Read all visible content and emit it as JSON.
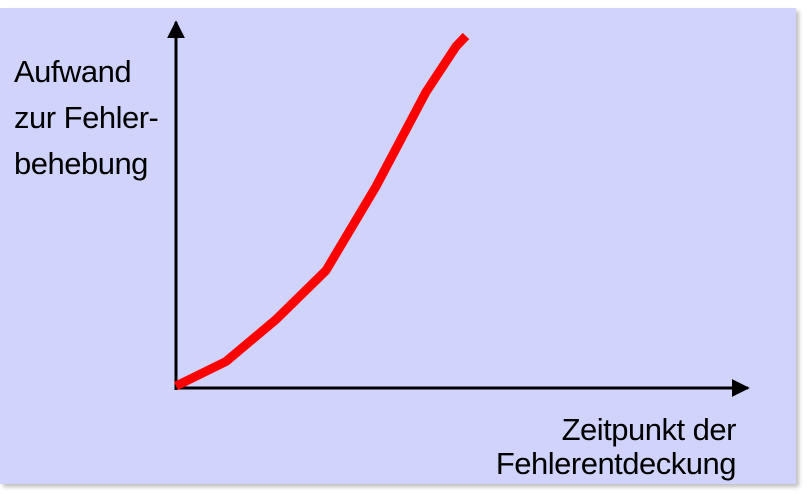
{
  "chart_data": {
    "type": "line",
    "title": "",
    "ylabel_lines": [
      "Aufwand",
      "zur Fehler-",
      "behebung"
    ],
    "xlabel_lines": [
      "Zeitpunkt der",
      "Fehlerentdeckung"
    ],
    "x": [
      0,
      1,
      2,
      3,
      4,
      5,
      5.6,
      5.8
    ],
    "values": [
      0,
      0.07,
      0.19,
      0.33,
      0.57,
      0.84,
      0.97,
      1.0
    ],
    "xlim": [
      0,
      8
    ],
    "ylim": [
      0,
      1
    ],
    "grid": false,
    "legend": "none",
    "series_color": "#ff0000",
    "axis_color": "#000000",
    "background_color": "#d0d4fc"
  }
}
